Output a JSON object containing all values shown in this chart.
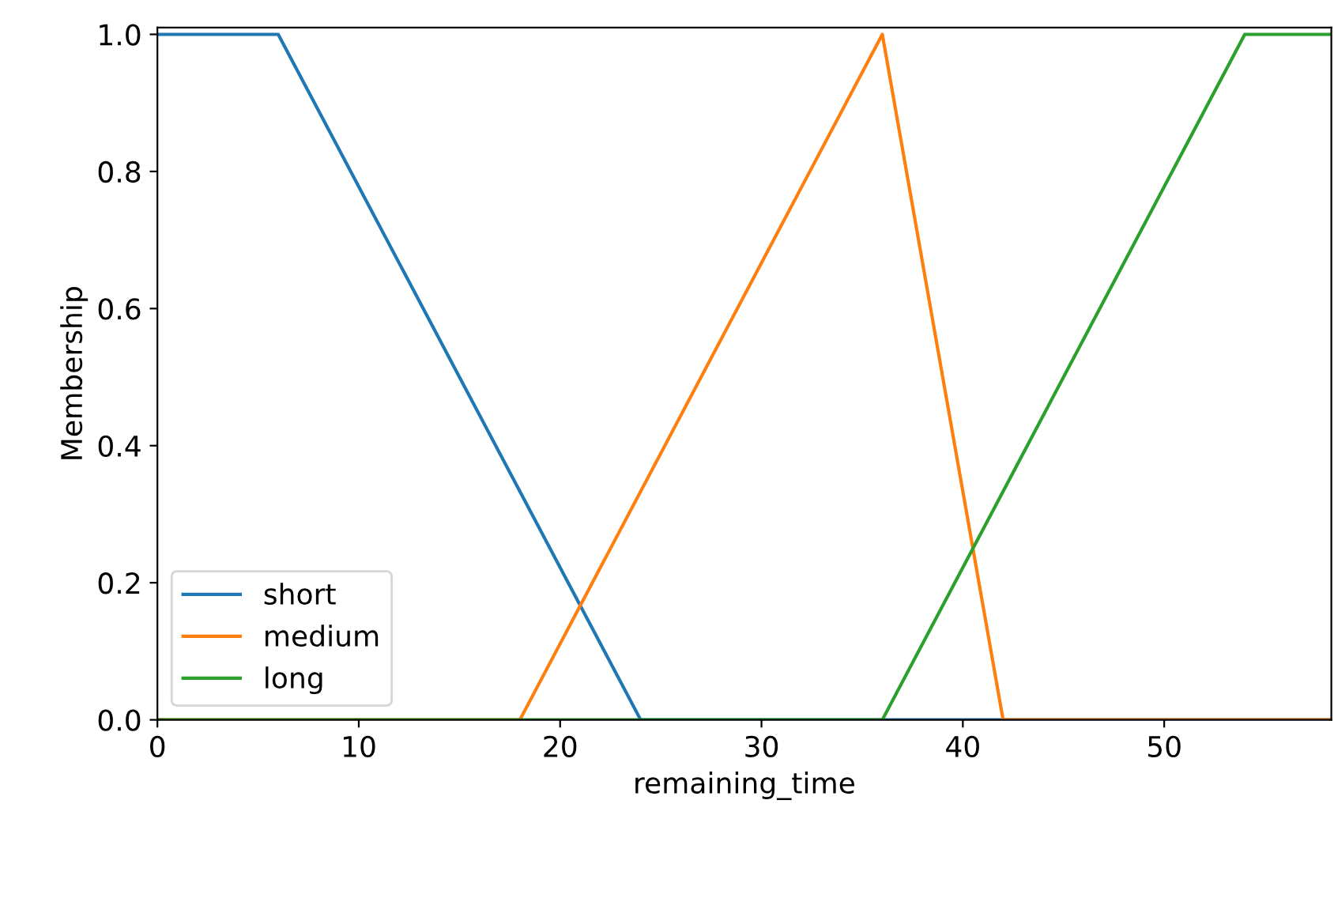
{
  "chart_data": {
    "type": "line",
    "xlabel": "remaining_time",
    "ylabel": "Membership",
    "series": [
      {
        "name": "short",
        "color": "#1f77b4",
        "x": [
          0,
          6,
          24,
          58.3
        ],
        "values": [
          1,
          1,
          0,
          0
        ]
      },
      {
        "name": "medium",
        "color": "#ff7f0e",
        "x": [
          0,
          18,
          36,
          42,
          58.3
        ],
        "values": [
          0,
          0,
          1,
          0,
          0
        ]
      },
      {
        "name": "long",
        "color": "#2ca02c",
        "x": [
          0,
          36,
          54,
          58.3
        ],
        "values": [
          0,
          0,
          1,
          1
        ]
      }
    ],
    "xlim": [
      0,
      58.3
    ],
    "xticks": [
      0,
      10,
      20,
      30,
      40,
      50
    ],
    "ylim": [
      0,
      1.01
    ],
    "yticks": [
      {
        "value": 0,
        "label": "0.0"
      },
      0.2,
      0.4,
      0.6,
      0.8,
      {
        "value": 1,
        "label": "1.0"
      }
    ],
    "legend": "bottom left",
    "grid": false,
    "marker": "none",
    "line_style": "solid"
  }
}
